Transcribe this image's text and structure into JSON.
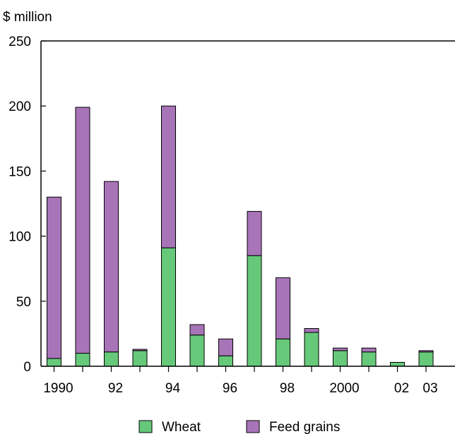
{
  "chart_data": {
    "type": "bar",
    "stacked": true,
    "title": "",
    "ylabel": "$ million",
    "xlabel": "",
    "ylim": [
      0,
      250
    ],
    "yticks": [
      0,
      50,
      100,
      150,
      200,
      250
    ],
    "categories": [
      "1990",
      "1991",
      "1992",
      "1993",
      "1994",
      "1995",
      "1996",
      "1997",
      "1998",
      "1999",
      "2000",
      "2001",
      "2002",
      "2003"
    ],
    "tick_labels": [
      "1990",
      "",
      "92",
      "",
      "94",
      "",
      "96",
      "",
      "98",
      "",
      "2000",
      "",
      "02",
      "03"
    ],
    "series": [
      {
        "name": "Wheat",
        "color": "#66c97a",
        "values": [
          6,
          10,
          11,
          12,
          91,
          24,
          8,
          85,
          21,
          26,
          12,
          11,
          3,
          11
        ]
      },
      {
        "name": "Feed grains",
        "color": "#a874b8",
        "values": [
          124,
          189,
          131,
          1,
          109,
          8,
          13,
          34,
          47,
          3,
          2,
          3,
          0,
          1
        ]
      }
    ],
    "grid": false,
    "legend": "bottom"
  }
}
